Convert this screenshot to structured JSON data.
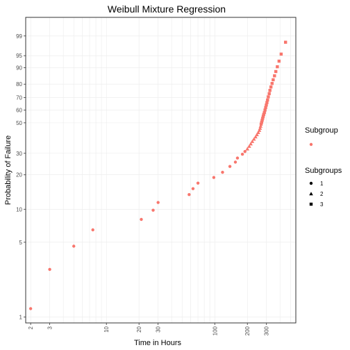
{
  "chart_data": {
    "type": "scatter",
    "title": "Weibull Mixture Regression",
    "xlabel": "Time in Hours",
    "ylabel": "Probability of Failure",
    "x_scale": "log",
    "y_scale": "weibull-probability",
    "xlim": [
      1.8,
      560
    ],
    "ylim_percent": [
      0.88,
      99.9
    ],
    "x_ticks": [
      2,
      3,
      10,
      20,
      30,
      100,
      200,
      300
    ],
    "y_ticks": [
      1,
      5,
      10,
      20,
      30,
      50,
      60,
      70,
      80,
      90,
      95,
      99
    ],
    "grid": true,
    "point_color": "#F8766D",
    "legend": {
      "color_title": "Subgroup",
      "shape_title": "Subgroups",
      "shape_items": [
        {
          "label": "1",
          "shape": "circle"
        },
        {
          "label": "2",
          "shape": "triangle"
        },
        {
          "label": "3",
          "shape": "square"
        }
      ]
    },
    "series": [
      {
        "label": "1",
        "shape": "circle",
        "points": [
          [
            2,
            1.2
          ],
          [
            3,
            2.8
          ],
          [
            5,
            4.6
          ],
          [
            7.5,
            6.5
          ],
          [
            21,
            8.1
          ],
          [
            27,
            9.8
          ],
          [
            30,
            11.5
          ],
          [
            58,
            13.5
          ],
          [
            63,
            15.2
          ],
          [
            70,
            17
          ],
          [
            98,
            19
          ],
          [
            118,
            21
          ],
          [
            138,
            23.5
          ],
          [
            155,
            25.5
          ],
          [
            162,
            27.5
          ],
          [
            180,
            29.5
          ],
          [
            190,
            31
          ]
        ]
      },
      {
        "label": "2",
        "shape": "triangle",
        "points": [
          [
            200,
            32.5
          ],
          [
            208,
            34
          ],
          [
            215,
            35.5
          ],
          [
            222,
            37
          ],
          [
            230,
            38.5
          ],
          [
            238,
            40
          ],
          [
            245,
            41.5
          ],
          [
            252,
            43
          ],
          [
            258,
            44.5
          ],
          [
            262,
            46
          ],
          [
            265,
            47.5
          ]
        ]
      },
      {
        "label": "3",
        "shape": "square",
        "points": [
          [
            268,
            49
          ],
          [
            271,
            50.5
          ],
          [
            274,
            52
          ],
          [
            277,
            53.5
          ],
          [
            280,
            55
          ],
          [
            283,
            56.5
          ],
          [
            287,
            58
          ],
          [
            291,
            60
          ],
          [
            295,
            62
          ],
          [
            299,
            64
          ],
          [
            303,
            66
          ],
          [
            307,
            68
          ],
          [
            312,
            70.5
          ],
          [
            318,
            73
          ],
          [
            323,
            75.5
          ],
          [
            330,
            78
          ],
          [
            338,
            80.5
          ],
          [
            346,
            83
          ],
          [
            356,
            85.5
          ],
          [
            366,
            88
          ],
          [
            378,
            90.5
          ],
          [
            392,
            93
          ],
          [
            410,
            95.5
          ],
          [
            450,
            98.2
          ]
        ]
      }
    ]
  }
}
